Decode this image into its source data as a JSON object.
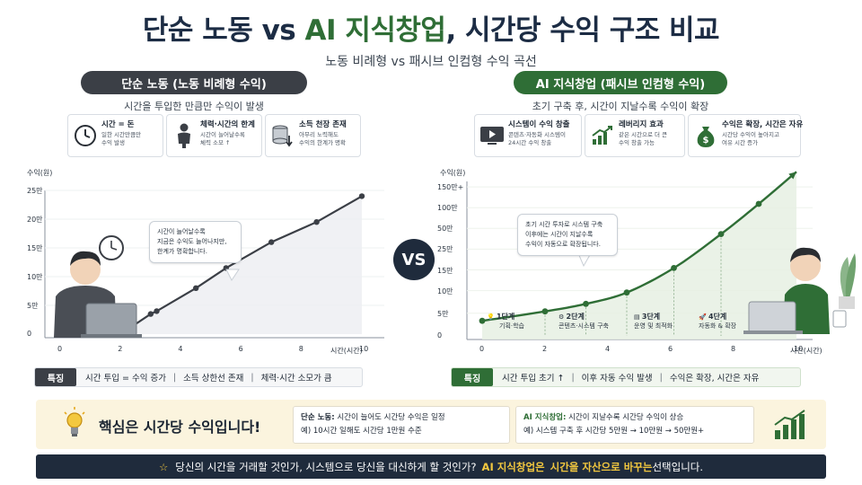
{
  "header": {
    "title_a": "단순 노동 vs ",
    "title_b": "AI 지식창업",
    "title_c": ", 시간당 수익 구조 비교",
    "subtitle": "노동 비례형 vs 패시브 인컴형 수익 곡선"
  },
  "left": {
    "pill": "단순 노동 (노동 비례형 수익)",
    "sub": "시간을 투입한 만큼만 수익이 발생",
    "cards": [
      {
        "icon": "clock-icon",
        "title": "시간 = 돈",
        "lines": [
          "일한 시간만큼만",
          "수익 발생"
        ]
      },
      {
        "icon": "tired-person-icon",
        "title": "체력·시간의 한계",
        "lines": [
          "시간이 늘어날수록",
          "체력 소모 ↑"
        ]
      },
      {
        "icon": "coins-down-icon",
        "title": "소득 천장 존재",
        "lines": [
          "아무리 노력해도",
          "수익의 한계가 명확"
        ]
      }
    ],
    "bubble": [
      "시간이 늘어날수록",
      "지금은 수익도 늘어나지만,",
      "한계가 명확합니다."
    ],
    "feature_tag": "특징",
    "features": [
      "시간 투입 = 수익 증가",
      "소득 상한선 존재",
      "체력·시간 소모가 큼"
    ]
  },
  "right": {
    "pill": "AI 지식창업 (패시브 인컴형 수익)",
    "sub": "초기 구축 후, 시간이 지날수록 수익이 확장",
    "cards": [
      {
        "icon": "video-play-icon",
        "title": "시스템이 수익 창출",
        "lines": [
          "콘텐츠·자동화 시스템이",
          "24시간 수익 창출"
        ]
      },
      {
        "icon": "growth-chart-icon",
        "title": "레버리지 효과",
        "lines": [
          "같은 시간으로 더 큰",
          "수익 창출 가능"
        ]
      },
      {
        "icon": "money-bag-icon",
        "title": "수익은 확장, 시간은 자유",
        "lines": [
          "시간당 수익이 높아지고",
          "여유 시간 증가"
        ]
      }
    ],
    "bubble": [
      "초기 시간 투자로 시스템 구축",
      "이후에는 시간이 지날수록",
      "수익이 자동으로 확장됩니다."
    ],
    "stages": [
      {
        "n": "1단계",
        "t": "기획·학습"
      },
      {
        "n": "2단계",
        "t": "콘텐츠·시스템 구축"
      },
      {
        "n": "3단계",
        "t": "운영 및 최적화"
      },
      {
        "n": "4단계",
        "t": "자동화 & 확장"
      }
    ],
    "feature_tag": "특징",
    "features": [
      "시간 투입 초기 ↑",
      "이후 자동 수익 발생",
      "수익은 확장, 시간은 자유"
    ]
  },
  "vs_label": "VS",
  "chart_data": [
    {
      "type": "line",
      "ylabel": "수익(원)",
      "xlabel": "시간(시간)",
      "yticks": [
        "0",
        "5만",
        "10만",
        "15만",
        "20만",
        "25만"
      ],
      "xticks": [
        "0",
        "2",
        "4",
        "6",
        "8",
        "10"
      ],
      "ylim": [
        0,
        25
      ],
      "xlim": [
        0,
        10
      ],
      "x": [
        0,
        2,
        3,
        3.2,
        4.5,
        5.5,
        7,
        8.5,
        10
      ],
      "y": [
        0,
        0,
        3.5,
        4,
        8,
        11.5,
        16,
        19.5,
        24
      ]
    },
    {
      "type": "line",
      "ylabel": "수익(원)",
      "xlabel": "시간(시간)",
      "yticks": [
        "0",
        "5만",
        "10만",
        "15만",
        "25만",
        "50만",
        "100만",
        "150만+"
      ],
      "xticks": [
        "0",
        "2",
        "4",
        "6",
        "8",
        "10"
      ],
      "x": [
        0,
        2,
        3.3,
        4.6,
        6.1,
        7.6,
        8.8,
        10
      ],
      "y_levels": [
        0.8,
        1.3,
        1.7,
        2.3,
        3.6,
        5.4,
        7.0,
        8.7
      ]
    }
  ],
  "core": {
    "title": "핵심은 시간당 수익입니다!",
    "labor_title": "단순 노동:",
    "labor_text": " 시간이 늘어도 시간당 수익은 일정",
    "labor_ex": "예) 10시간 일해도 시간당 1만원 수준",
    "ai_title": "AI 지식창업:",
    "ai_text": " 시간이 지날수록 시간당 수익이 상승",
    "ai_ex": "예) 시스템 구축 후 시간당 5만원 → 10만원 → 50만원+"
  },
  "bottom": {
    "star": "☆",
    "text": "당신의 시간을 거래할 것인가, 시스템으로 당신을 대신하게 할 것인가?",
    "hl1": "AI 지식창업은",
    "hl2": "시간을 자산으로 바꾸는",
    "end": " 선택입니다."
  },
  "colors": {
    "navy": "#1c2c44",
    "green": "#2f6e36",
    "dark": "#3b3f46",
    "gold": "#f3c83f"
  }
}
